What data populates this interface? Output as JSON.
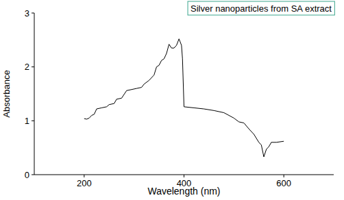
{
  "chart_data": {
    "type": "line",
    "title": "Silver nanoparticles from SA extract",
    "x_label": "Wavelength (nm)",
    "y_label": "Absorbance",
    "x": [
      200,
      205,
      210,
      215,
      220,
      225,
      235,
      245,
      250,
      260,
      265,
      275,
      285,
      295,
      305,
      315,
      320,
      330,
      340,
      345,
      350,
      355,
      360,
      365,
      370,
      375,
      380,
      385,
      390,
      395,
      397,
      400,
      420,
      440,
      460,
      480,
      500,
      510,
      520,
      530,
      540,
      550,
      555,
      560,
      565,
      570,
      575,
      585,
      600
    ],
    "values": [
      1.04,
      1.03,
      1.05,
      1.1,
      1.12,
      1.22,
      1.24,
      1.26,
      1.3,
      1.32,
      1.4,
      1.42,
      1.56,
      1.58,
      1.6,
      1.62,
      1.68,
      1.75,
      1.85,
      2.0,
      2.03,
      2.12,
      2.15,
      2.25,
      2.42,
      2.35,
      2.35,
      2.4,
      2.52,
      2.4,
      2.15,
      1.26,
      1.24,
      1.22,
      1.19,
      1.15,
      1.05,
      0.98,
      0.96,
      0.85,
      0.75,
      0.6,
      0.55,
      0.33,
      0.47,
      0.52,
      0.6,
      0.6,
      0.62
    ],
    "color": "#000000",
    "xlim": [
      100,
      700
    ],
    "xticks": [
      200,
      400,
      600
    ],
    "ylim": [
      0,
      3
    ],
    "yticks": [
      0,
      1,
      2,
      3
    ],
    "grid": false
  }
}
